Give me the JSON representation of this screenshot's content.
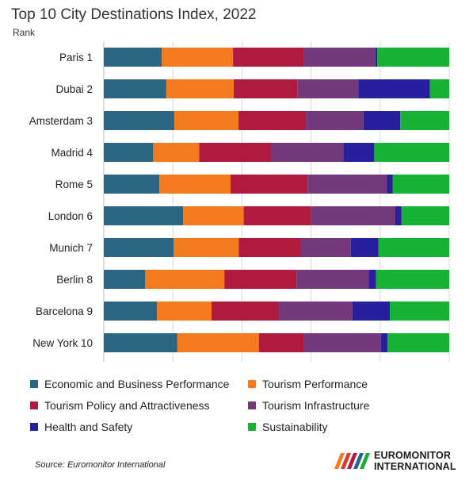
{
  "chart_data": {
    "type": "bar",
    "orientation": "horizontal",
    "stacked": "percent",
    "title": "Top 10 City Destinations Index, 2022",
    "subtitle": "Rank",
    "categories": [
      "Paris 1",
      "Dubai 2",
      "Amsterdam 3",
      "Madrid 4",
      "Rome 5",
      "London 6",
      "Munich 7",
      "Berlin 8",
      "Barcelona 9",
      "New York 10"
    ],
    "series": [
      {
        "name": "Economic and Business Performance",
        "color": "#2a6682",
        "values": [
          16.8,
          18.1,
          20.4,
          14.3,
          16.1,
          23.0,
          20.2,
          12.0,
          15.4,
          21.3
        ]
      },
      {
        "name": "Tourism Performance",
        "color": "#f47a1f",
        "values": [
          20.6,
          19.5,
          18.6,
          13.3,
          20.6,
          17.5,
          18.9,
          22.9,
          15.8,
          23.6
        ]
      },
      {
        "name": "Tourism Policy and Attractiveness",
        "color": "#b11a3f",
        "values": [
          20.6,
          18.4,
          19.5,
          20.9,
          22.3,
          19.5,
          17.9,
          20.9,
          19.5,
          12.9
        ]
      },
      {
        "name": "Tourism Infrastructure",
        "color": "#73397a",
        "values": [
          20.6,
          17.7,
          16.7,
          20.9,
          23.0,
          24.4,
          14.5,
          20.9,
          21.3,
          22.4
        ]
      },
      {
        "name": "Health and Safety",
        "color": "#281f9f",
        "values": [
          0.6,
          20.7,
          10.6,
          8.9,
          1.6,
          1.8,
          8.0,
          2.1,
          10.8,
          1.9
        ]
      },
      {
        "name": "Sustainability",
        "color": "#17b135",
        "values": [
          20.8,
          5.6,
          14.2,
          21.7,
          16.4,
          13.8,
          20.5,
          21.2,
          17.2,
          17.9
        ]
      }
    ],
    "xlim": [
      0,
      100
    ],
    "grid": "vertical",
    "legend": "bottom"
  },
  "footer": {
    "source": "Source: Euromonitor International",
    "logo_line1": "EUROMONITOR",
    "logo_line2": "INTERNATIONAL"
  }
}
